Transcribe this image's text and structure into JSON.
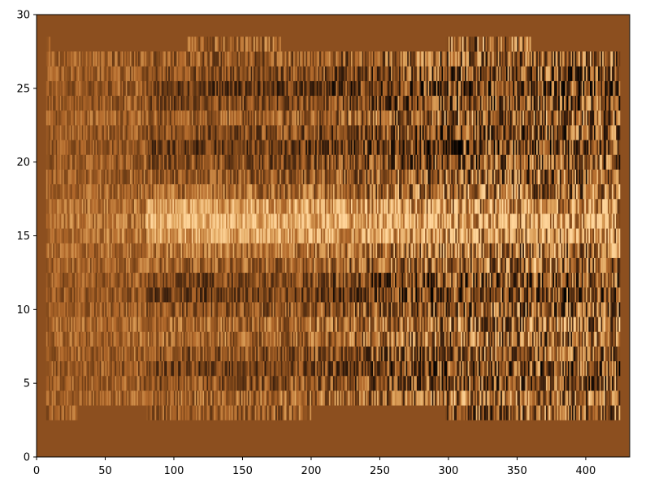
{
  "chart_data": {
    "type": "heatmap",
    "title": "",
    "xlabel": "",
    "ylabel": "",
    "xlim": [
      0,
      432
    ],
    "ylim": [
      0,
      30
    ],
    "x_ticks": [
      0,
      50,
      100,
      150,
      200,
      250,
      300,
      350,
      400
    ],
    "y_ticks": [
      0,
      5,
      10,
      15,
      20,
      25,
      30
    ],
    "grid": false,
    "legend": "none",
    "colormap": "copper",
    "background_color": "#8c4f1f",
    "colormap_stops": [
      "#000000",
      "#3a1f0d",
      "#7a4418",
      "#b36a2c",
      "#e0a55e",
      "#ffd59a"
    ],
    "rows": 30,
    "cols": 432,
    "data_rows": [
      2,
      27
    ],
    "valid_x_ranges": {
      "bottom_rows": [
        [
          7,
          30
        ],
        [
          80,
          200
        ],
        [
          298,
          425
        ]
      ],
      "top_rows": [
        [
          7,
          10
        ],
        [
          110,
          178
        ],
        [
          298,
          360
        ]
      ],
      "main": [
        [
          7,
          425
        ]
      ]
    },
    "noise_amplitude_by_column": [
      {
        "x": 0,
        "amp": 0.35
      },
      {
        "x": 80,
        "amp": 0.45
      },
      {
        "x": 200,
        "amp": 0.6
      },
      {
        "x": 300,
        "amp": 1.0
      },
      {
        "x": 432,
        "amp": 1.0
      }
    ],
    "row_pattern": [
      {
        "row": 2,
        "level": -0.15
      },
      {
        "row": 3,
        "level": 0.0
      },
      {
        "row": 4,
        "level": -0.25
      },
      {
        "row": 5,
        "level": -0.45
      },
      {
        "row": 6,
        "level": -0.25
      },
      {
        "row": 7,
        "level": 0.05
      },
      {
        "row": 8,
        "level": 0.1
      },
      {
        "row": 9,
        "level": -0.2
      },
      {
        "row": 10,
        "level": -0.5
      },
      {
        "row": 11,
        "level": -0.4
      },
      {
        "row": 12,
        "level": 0.0
      },
      {
        "row": 13,
        "level": 0.2
      },
      {
        "row": 14,
        "level": 0.75
      },
      {
        "row": 15,
        "level": 0.95
      },
      {
        "row": 16,
        "level": 0.7
      },
      {
        "row": 17,
        "level": 0.1
      },
      {
        "row": 18,
        "level": -0.1
      },
      {
        "row": 19,
        "level": -0.3
      },
      {
        "row": 20,
        "level": -0.55
      },
      {
        "row": 21,
        "level": -0.35
      },
      {
        "row": 22,
        "level": -0.1
      },
      {
        "row": 23,
        "level": -0.4
      },
      {
        "row": 24,
        "level": -0.55
      },
      {
        "row": 25,
        "level": -0.3
      },
      {
        "row": 26,
        "level": -0.15
      },
      {
        "row": 27,
        "level": 0.0
      }
    ]
  }
}
